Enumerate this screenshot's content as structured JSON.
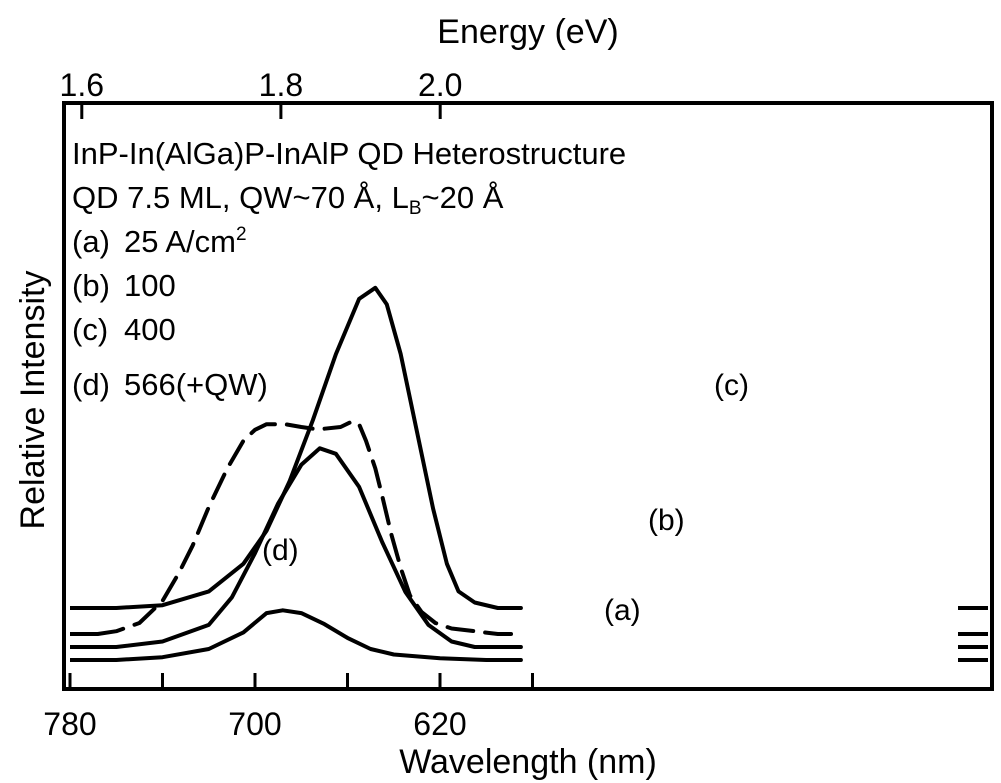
{
  "chart_data": {
    "type": "line",
    "xlabel": "Wavelength (nm)",
    "ylabel": "Relative Intensity",
    "top_axis_label": "Energy (eV)",
    "xlim": [
      780,
      582
    ],
    "x_reversed": true,
    "x_ticks": [
      780,
      740,
      700,
      660,
      620,
      580
    ],
    "x_tick_labels": [
      "780",
      "",
      "700",
      "",
      "620",
      ""
    ],
    "top_ticks_ev": [
      1.6,
      1.8,
      2.0
    ],
    "top_tick_labels": [
      "1.6",
      "1.8",
      "2.0"
    ],
    "ylim": [
      0,
      1.0
    ],
    "legend_lines": [
      "InP-In(AlGa)P-InAlP QD Heterostructure",
      "QD 7.5 ML, QW~70 Å, L",
      "B",
      "~20 Å",
      "(a)",
      "25 A/cm",
      "2",
      "(b)",
      "100",
      "(c)",
      "400",
      "(d)",
      "566(+QW)"
    ],
    "series": [
      {
        "name": "(a)",
        "dashed": false,
        "x": [
          768,
          760,
          740,
          720,
          705,
          695,
          688,
          680,
          670,
          660,
          650,
          640,
          620,
          600,
          585
        ],
        "y": [
          0.0,
          0.0,
          0.005,
          0.02,
          0.05,
          0.085,
          0.09,
          0.085,
          0.065,
          0.04,
          0.02,
          0.01,
          0.003,
          0.0,
          0.0
        ]
      },
      {
        "name": "(b)",
        "dashed": false,
        "x": [
          768,
          760,
          740,
          720,
          710,
          700,
          690,
          680,
          672,
          665,
          655,
          645,
          635,
          625,
          615,
          605,
          595,
          585
        ],
        "y": [
          0.0,
          0.0,
          0.01,
          0.04,
          0.09,
          0.17,
          0.26,
          0.33,
          0.36,
          0.35,
          0.29,
          0.19,
          0.1,
          0.04,
          0.01,
          0.0,
          0.0,
          0.0
        ]
      },
      {
        "name": "(c)",
        "dashed": false,
        "x": [
          768,
          760,
          740,
          720,
          705,
          695,
          685,
          675,
          665,
          655,
          648,
          643,
          637,
          630,
          623,
          617,
          612,
          605,
          595,
          585
        ],
        "y": [
          0.0,
          0.0,
          0.005,
          0.03,
          0.08,
          0.14,
          0.23,
          0.34,
          0.46,
          0.56,
          0.58,
          0.55,
          0.46,
          0.32,
          0.18,
          0.08,
          0.03,
          0.01,
          0.0,
          0.0
        ]
      },
      {
        "name": "(d)",
        "dashed": true,
        "x": [
          768,
          760,
          750,
          740,
          733,
          727,
          720,
          712,
          705,
          700,
          695,
          687,
          680,
          675,
          670,
          663,
          658,
          655,
          652,
          648,
          645,
          641,
          637,
          633,
          628,
          622,
          615,
          605,
          595,
          585
        ],
        "y": [
          0.0,
          0.005,
          0.02,
          0.06,
          0.11,
          0.16,
          0.23,
          0.3,
          0.35,
          0.37,
          0.38,
          0.38,
          0.375,
          0.372,
          0.372,
          0.375,
          0.385,
          0.38,
          0.35,
          0.3,
          0.25,
          0.18,
          0.12,
          0.07,
          0.04,
          0.02,
          0.01,
          0.005,
          0.0,
          0.0
        ]
      }
    ],
    "annotations": [
      {
        "text": "(a)",
        "series": "(a)"
      },
      {
        "text": "(b)",
        "series": "(b)"
      },
      {
        "text": "(c)",
        "series": "(c)"
      },
      {
        "text": "(d)",
        "series": "(d)"
      }
    ],
    "grid": false,
    "legend_placement": "top-left"
  }
}
